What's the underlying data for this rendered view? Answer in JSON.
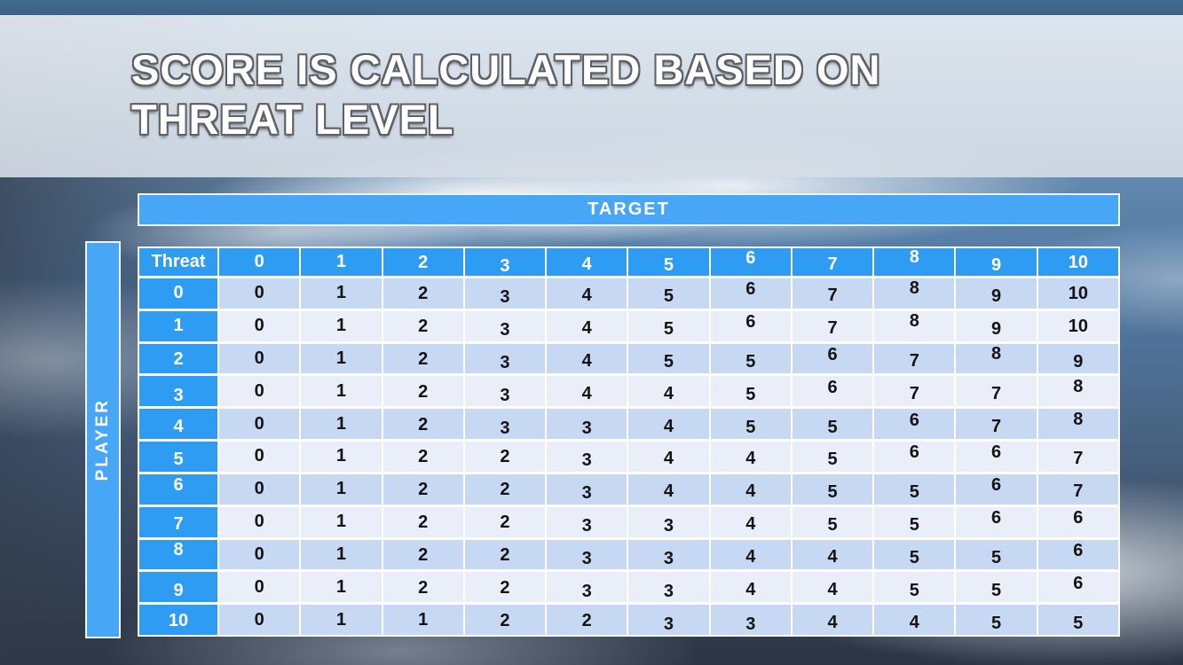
{
  "slide": {
    "title": "SCORE IS CALCULATED BASED ON THREAT LEVEL",
    "title_lines": [
      "SCORE IS CALCULATED BASED ON",
      "THREAT LEVEL"
    ]
  },
  "matrix": {
    "target_label": "TARGET",
    "player_label": "PLAYER",
    "corner_label": "Threat",
    "column_headers": [
      "0",
      "1",
      "2",
      "3",
      "4",
      "5",
      "6",
      "7",
      "8",
      "9",
      "10"
    ],
    "row_headers": [
      "0",
      "1",
      "2",
      "3",
      "4",
      "5",
      "6",
      "7",
      "8",
      "9",
      "10"
    ],
    "rows": [
      [
        0,
        1,
        2,
        3,
        4,
        5,
        6,
        7,
        8,
        9,
        10
      ],
      [
        0,
        1,
        2,
        3,
        4,
        5,
        6,
        7,
        8,
        9,
        10
      ],
      [
        0,
        1,
        2,
        3,
        4,
        5,
        5,
        6,
        7,
        8,
        9
      ],
      [
        0,
        1,
        2,
        3,
        4,
        4,
        5,
        6,
        7,
        7,
        8
      ],
      [
        0,
        1,
        2,
        3,
        3,
        4,
        5,
        5,
        6,
        7,
        8
      ],
      [
        0,
        1,
        2,
        2,
        3,
        4,
        4,
        5,
        6,
        6,
        7
      ],
      [
        0,
        1,
        2,
        2,
        3,
        4,
        4,
        5,
        5,
        6,
        7
      ],
      [
        0,
        1,
        2,
        2,
        3,
        3,
        4,
        5,
        5,
        6,
        6
      ],
      [
        0,
        1,
        2,
        2,
        3,
        3,
        4,
        4,
        5,
        5,
        6
      ],
      [
        0,
        1,
        2,
        2,
        3,
        3,
        4,
        4,
        5,
        5,
        6
      ],
      [
        0,
        1,
        1,
        2,
        2,
        3,
        3,
        4,
        4,
        5,
        5
      ]
    ]
  },
  "colors": {
    "banner_blue": "#47a7f6",
    "header_blue": "#2e9cf3",
    "row_even": "#c7d8f2",
    "row_odd": "#e9eef9",
    "cell_text": "#141414",
    "header_text": "#ffffff",
    "top_strip": "#3a6387",
    "title_text": "#ffffff",
    "title_outline": "#5d6166"
  },
  "chart_data": {
    "type": "table",
    "title": "SCORE IS CALCULATED BASED ON THREAT LEVEL",
    "column_group_label": "TARGET",
    "row_group_label": "PLAYER",
    "corner_label": "Threat",
    "column_headers": [
      0,
      1,
      2,
      3,
      4,
      5,
      6,
      7,
      8,
      9,
      10
    ],
    "row_headers": [
      0,
      1,
      2,
      3,
      4,
      5,
      6,
      7,
      8,
      9,
      10
    ],
    "values": [
      [
        0,
        1,
        2,
        3,
        4,
        5,
        6,
        7,
        8,
        9,
        10
      ],
      [
        0,
        1,
        2,
        3,
        4,
        5,
        6,
        7,
        8,
        9,
        10
      ],
      [
        0,
        1,
        2,
        3,
        4,
        5,
        5,
        6,
        7,
        8,
        9
      ],
      [
        0,
        1,
        2,
        3,
        4,
        4,
        5,
        6,
        7,
        7,
        8
      ],
      [
        0,
        1,
        2,
        3,
        3,
        4,
        5,
        5,
        6,
        7,
        8
      ],
      [
        0,
        1,
        2,
        2,
        3,
        4,
        4,
        5,
        6,
        6,
        7
      ],
      [
        0,
        1,
        2,
        2,
        3,
        4,
        4,
        5,
        5,
        6,
        7
      ],
      [
        0,
        1,
        2,
        2,
        3,
        3,
        4,
        5,
        5,
        6,
        6
      ],
      [
        0,
        1,
        2,
        2,
        3,
        3,
        4,
        4,
        5,
        5,
        6
      ],
      [
        0,
        1,
        2,
        2,
        3,
        3,
        4,
        4,
        5,
        5,
        6
      ],
      [
        0,
        1,
        1,
        2,
        2,
        3,
        3,
        4,
        4,
        5,
        5
      ]
    ]
  }
}
